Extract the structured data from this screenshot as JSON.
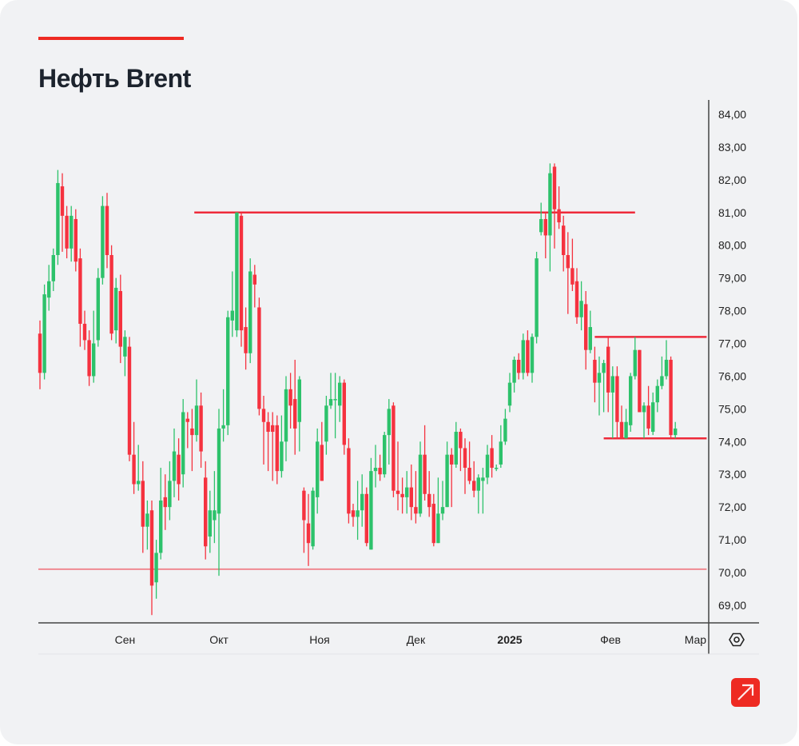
{
  "header": {
    "title": "Нефть Brent"
  },
  "colors": {
    "accent": "#ee2a22",
    "up": "#2dc26b",
    "down": "#f5323f",
    "level": "#ee2a3a",
    "support": "#f08a92"
  },
  "icons": {
    "settings": "hexagon-settings-icon",
    "logo": "arrow-up-right-logo"
  },
  "chart_data": {
    "type": "candlestick",
    "title": "Нефть Brent",
    "ylim": [
      68.6,
      84.4
    ],
    "y_ticks": [
      "84,00",
      "83,00",
      "82,00",
      "81,00",
      "80,00",
      "79,00",
      "78,00",
      "77,00",
      "76,00",
      "75,00",
      "74,00",
      "73,00",
      "72,00",
      "71,00",
      "70,00",
      "69,00"
    ],
    "y_tick_values": [
      84,
      83,
      82,
      81,
      80,
      79,
      78,
      77,
      76,
      75,
      74,
      73,
      72,
      71,
      70,
      69
    ],
    "x_ticks": [
      {
        "label": "Сен",
        "index": 19,
        "bold": false
      },
      {
        "label": "Окт",
        "index": 40,
        "bold": false
      },
      {
        "label": "Ноя",
        "index": 62.5,
        "bold": false
      },
      {
        "label": "Дек",
        "index": 84,
        "bold": false
      },
      {
        "label": "2025",
        "index": 105,
        "bold": true
      },
      {
        "label": "Фев",
        "index": 127.5,
        "bold": false
      },
      {
        "label": "Мар",
        "index": 146.5,
        "bold": false
      }
    ],
    "levels": [
      {
        "price": 81.0,
        "from": 34.5,
        "to": 133,
        "kind": "resistance"
      },
      {
        "price": 70.1,
        "from": -0.5,
        "to": 149,
        "kind": "support"
      },
      {
        "price": 77.2,
        "from": 124,
        "to": 149,
        "kind": "range-top"
      },
      {
        "price": 74.1,
        "from": 126,
        "to": 149,
        "kind": "range-bottom"
      }
    ],
    "ohlc": [
      [
        77.3,
        77.7,
        75.6,
        76.1
      ],
      [
        76.1,
        78.8,
        75.9,
        78.5
      ],
      [
        78.4,
        79.4,
        78.0,
        78.9
      ],
      [
        78.9,
        79.9,
        78.6,
        79.7
      ],
      [
        79.7,
        82.3,
        79.4,
        81.9
      ],
      [
        81.8,
        82.2,
        79.8,
        80.9
      ],
      [
        80.9,
        81.2,
        79.6,
        79.9
      ],
      [
        79.9,
        81.2,
        79.5,
        80.9
      ],
      [
        80.8,
        81.1,
        79.2,
        79.5
      ],
      [
        79.6,
        79.9,
        76.9,
        77.6
      ],
      [
        77.6,
        78.0,
        76.8,
        77.1
      ],
      [
        77.1,
        77.4,
        75.7,
        76.0
      ],
      [
        76.0,
        78.0,
        75.8,
        77.0
      ],
      [
        77.1,
        79.3,
        76.9,
        79.0
      ],
      [
        79.0,
        81.5,
        78.8,
        81.2
      ],
      [
        81.2,
        81.6,
        79.3,
        79.7
      ],
      [
        79.7,
        80.0,
        77.1,
        77.3
      ],
      [
        77.4,
        79.0,
        77.0,
        78.7
      ],
      [
        78.6,
        79.1,
        76.4,
        76.9
      ],
      [
        76.6,
        77.4,
        76.0,
        77.2
      ],
      [
        76.9,
        77.2,
        73.4,
        73.6
      ],
      [
        73.6,
        74.6,
        72.4,
        72.7
      ],
      [
        72.7,
        73.9,
        72.5,
        72.8
      ],
      [
        72.8,
        73.4,
        70.6,
        71.4
      ],
      [
        71.4,
        72.2,
        70.7,
        71.8
      ],
      [
        71.9,
        72.2,
        68.7,
        69.6
      ],
      [
        69.7,
        71.0,
        69.2,
        70.6
      ],
      [
        70.6,
        73.2,
        70.4,
        72.2
      ],
      [
        72.3,
        73.0,
        71.3,
        72.0
      ],
      [
        72.0,
        73.4,
        71.6,
        72.8
      ],
      [
        72.8,
        74.4,
        72.3,
        73.7
      ],
      [
        73.6,
        74.1,
        72.2,
        72.7
      ],
      [
        73.0,
        75.3,
        72.6,
        74.9
      ],
      [
        74.7,
        74.9,
        73.8,
        74.6
      ],
      [
        74.4,
        75.0,
        73.1,
        74.2
      ],
      [
        74.2,
        75.9,
        74.0,
        75.1
      ],
      [
        75.1,
        75.5,
        73.2,
        73.7
      ],
      [
        72.9,
        73.4,
        70.4,
        70.8
      ],
      [
        71.1,
        72.5,
        70.6,
        71.9
      ],
      [
        71.6,
        73.1,
        70.9,
        71.9
      ],
      [
        71.8,
        75.0,
        69.9,
        74.4
      ],
      [
        74.4,
        75.6,
        74.0,
        74.5
      ],
      [
        74.5,
        78.0,
        74.2,
        77.8
      ],
      [
        77.7,
        79.2,
        77.2,
        78.0
      ],
      [
        77.4,
        81.0,
        77.2,
        81.0
      ],
      [
        80.9,
        81.0,
        76.9,
        77.4
      ],
      [
        77.5,
        78.1,
        76.2,
        76.7
      ],
      [
        76.7,
        79.6,
        76.4,
        79.2
      ],
      [
        79.1,
        79.4,
        78.1,
        78.8
      ],
      [
        78.1,
        78.4,
        74.8,
        75.0
      ],
      [
        75.0,
        75.4,
        73.3,
        74.6
      ],
      [
        74.6,
        74.9,
        73.1,
        74.3
      ],
      [
        74.5,
        74.9,
        72.8,
        74.3
      ],
      [
        74.5,
        74.8,
        72.7,
        73.1
      ],
      [
        73.1,
        74.8,
        72.9,
        74.0
      ],
      [
        74.0,
        76.0,
        73.4,
        75.6
      ],
      [
        75.6,
        76.1,
        74.4,
        75.1
      ],
      [
        75.3,
        76.5,
        73.6,
        74.4
      ],
      [
        74.6,
        76.0,
        73.7,
        75.9
      ],
      [
        72.5,
        72.6,
        70.6,
        71.6
      ],
      [
        71.5,
        72.4,
        70.2,
        70.9
      ],
      [
        70.8,
        72.6,
        70.7,
        72.5
      ],
      [
        72.3,
        74.4,
        71.8,
        74.0
      ],
      [
        73.9,
        74.6,
        72.8,
        72.8
      ],
      [
        74.0,
        75.4,
        73.6,
        75.1
      ],
      [
        75.1,
        76.1,
        75.0,
        75.3
      ],
      [
        75.3,
        76.1,
        74.1,
        75.3
      ],
      [
        75.1,
        76.0,
        74.6,
        75.8
      ],
      [
        75.8,
        75.9,
        73.6,
        73.9
      ],
      [
        73.8,
        74.1,
        71.5,
        71.8
      ],
      [
        71.9,
        72.1,
        71.4,
        71.7
      ],
      [
        71.7,
        72.8,
        71.0,
        71.9
      ],
      [
        71.9,
        73.0,
        71.4,
        72.4
      ],
      [
        72.4,
        72.6,
        70.8,
        70.9
      ],
      [
        70.7,
        73.5,
        70.7,
        73.1
      ],
      [
        73.1,
        73.9,
        72.6,
        73.2
      ],
      [
        73.2,
        73.6,
        72.8,
        73.0
      ],
      [
        73.0,
        74.3,
        72.9,
        74.2
      ],
      [
        74.2,
        75.3,
        73.3,
        75.0
      ],
      [
        75.1,
        75.2,
        72.3,
        72.5
      ],
      [
        72.5,
        74.0,
        71.9,
        72.4
      ],
      [
        72.4,
        72.9,
        71.8,
        72.3
      ],
      [
        72.3,
        73.1,
        71.8,
        72.6
      ],
      [
        72.6,
        73.3,
        71.6,
        72.0
      ],
      [
        72.0,
        73.1,
        71.5,
        71.8
      ],
      [
        71.8,
        74.0,
        71.7,
        73.6
      ],
      [
        73.6,
        74.5,
        72.2,
        72.4
      ],
      [
        72.4,
        73.1,
        71.7,
        72.0
      ],
      [
        72.1,
        72.4,
        70.8,
        70.9
      ],
      [
        70.9,
        72.9,
        70.9,
        71.8
      ],
      [
        71.8,
        72.8,
        71.6,
        72.0
      ],
      [
        72.0,
        74.0,
        72.0,
        73.6
      ],
      [
        73.6,
        73.8,
        72.0,
        73.3
      ],
      [
        73.3,
        74.6,
        73.2,
        74.3
      ],
      [
        74.3,
        74.4,
        73.1,
        73.8
      ],
      [
        73.8,
        74.1,
        72.4,
        73.2
      ],
      [
        73.2,
        74.0,
        72.7,
        72.8
      ],
      [
        72.8,
        73.4,
        72.3,
        72.5
      ],
      [
        72.5,
        73.0,
        71.8,
        72.9
      ],
      [
        72.8,
        73.2,
        71.8,
        72.9
      ],
      [
        72.9,
        73.9,
        72.7,
        73.6
      ],
      [
        73.8,
        74.2,
        72.9,
        73.2
      ],
      [
        73.2,
        73.3,
        73.1,
        73.2
      ],
      [
        73.3,
        74.5,
        73.2,
        74.0
      ],
      [
        74.0,
        75.0,
        73.9,
        74.7
      ],
      [
        75.1,
        76.1,
        74.9,
        75.8
      ],
      [
        75.8,
        76.6,
        75.5,
        76.5
      ],
      [
        76.5,
        76.7,
        75.9,
        76.1
      ],
      [
        76.1,
        77.3,
        75.9,
        77.1
      ],
      [
        77.1,
        77.4,
        76.0,
        76.1
      ],
      [
        76.1,
        77.3,
        75.8,
        77.2
      ],
      [
        77.2,
        79.8,
        77.0,
        79.6
      ],
      [
        80.4,
        81.3,
        80.3,
        80.8
      ],
      [
        80.8,
        81.0,
        79.6,
        80.3
      ],
      [
        80.3,
        82.5,
        79.2,
        82.2
      ],
      [
        82.4,
        82.5,
        79.9,
        81.1
      ],
      [
        81.1,
        81.8,
        80.5,
        80.7
      ],
      [
        80.6,
        80.9,
        79.2,
        79.7
      ],
      [
        79.7,
        80.4,
        77.9,
        79.3
      ],
      [
        79.3,
        80.2,
        78.6,
        78.8
      ],
      [
        78.9,
        79.3,
        77.6,
        77.8
      ],
      [
        77.8,
        78.9,
        77.4,
        78.3
      ],
      [
        78.2,
        78.6,
        76.2,
        76.8
      ],
      [
        76.8,
        78.0,
        76.7,
        77.5
      ],
      [
        76.5,
        76.9,
        75.2,
        75.8
      ],
      [
        75.8,
        76.6,
        74.8,
        76.1
      ],
      [
        76.1,
        76.5,
        74.9,
        76.4
      ],
      [
        76.9,
        77.2,
        74.9,
        75.5
      ],
      [
        75.5,
        76.3,
        74.1,
        76.0
      ],
      [
        76.0,
        76.3,
        74.1,
        74.6
      ],
      [
        74.6,
        75.1,
        74.1,
        74.1
      ],
      [
        74.1,
        75.0,
        74.1,
        74.6
      ],
      [
        74.5,
        76.1,
        74.3,
        76.0
      ],
      [
        76.0,
        77.2,
        75.9,
        76.8
      ],
      [
        76.8,
        76.8,
        74.9,
        74.9
      ],
      [
        74.9,
        75.2,
        74.1,
        75.1
      ],
      [
        75.1,
        75.7,
        74.2,
        74.4
      ],
      [
        74.3,
        75.5,
        74.2,
        75.2
      ],
      [
        75.2,
        75.9,
        74.9,
        75.7
      ],
      [
        75.7,
        76.6,
        75.6,
        76.0
      ],
      [
        76.0,
        77.1,
        75.9,
        76.5
      ],
      [
        76.5,
        76.6,
        74.1,
        74.2
      ],
      [
        74.2,
        74.6,
        74.1,
        74.4
      ]
    ]
  }
}
